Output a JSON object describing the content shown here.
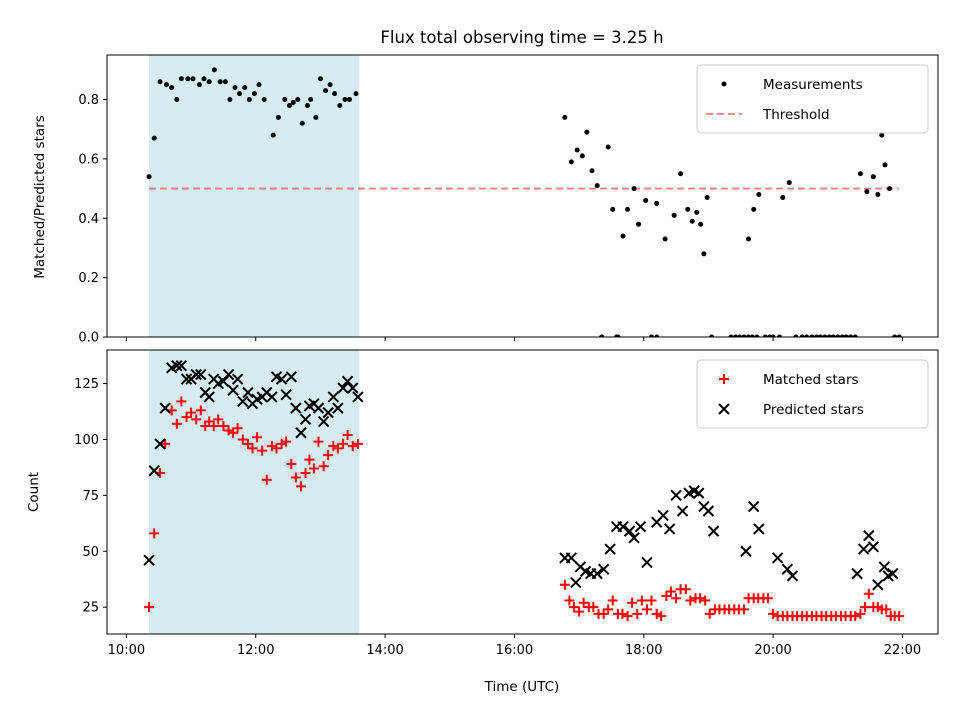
{
  "chart_data": [
    {
      "type": "scatter",
      "title": "Flux total observing time = 3.25 h",
      "xlabel": "",
      "ylabel": "Matched/Predicted stars",
      "xlim": [
        9.7,
        22.55
      ],
      "ylim": [
        0,
        0.95
      ],
      "yticks": [
        0,
        0.2,
        0.4,
        0.6,
        0.8
      ],
      "ytick_labels": [
        "0.0",
        "0.2",
        "0.4",
        "0.6",
        "0.8"
      ],
      "grid": false,
      "legend_position": "top-right",
      "shaded_span": {
        "x_start": 10.35,
        "x_end": 13.6,
        "color": "#add8e6"
      },
      "threshold": {
        "name": "Threshold",
        "value": 0.5,
        "x_start": 10.35,
        "x_end": 21.95,
        "color": "#ff7f7f"
      },
      "series": [
        {
          "name": "Measurements",
          "marker": "dot",
          "color": "#000000",
          "x": [
            10.35,
            10.43,
            10.52,
            10.62,
            10.7,
            10.78,
            10.85,
            10.95,
            11.03,
            11.13,
            11.2,
            11.28,
            11.36,
            11.45,
            11.53,
            11.6,
            11.68,
            11.75,
            11.83,
            11.9,
            11.98,
            12.05,
            12.13,
            12.27,
            12.35,
            12.45,
            12.52,
            12.58,
            12.65,
            12.72,
            12.8,
            12.85,
            12.93,
            13.0,
            13.08,
            13.15,
            13.22,
            13.3,
            13.38,
            13.45,
            13.55,
            16.78,
            16.88,
            16.97,
            17.05,
            17.12,
            17.2,
            17.28,
            17.35,
            17.45,
            17.52,
            17.58,
            17.68,
            17.75,
            17.85,
            17.92,
            18.03,
            18.2,
            18.33,
            18.47,
            18.57,
            18.68,
            18.75,
            18.82,
            18.88,
            18.93,
            18.98,
            19.05,
            19.62,
            19.7,
            19.78,
            20.15,
            20.25,
            20.35,
            21.35,
            21.45,
            21.55,
            21.62,
            21.68,
            21.73,
            21.8,
            17.35,
            17.6,
            18.12,
            18.2,
            19.35,
            19.42,
            19.48,
            19.55,
            19.62,
            19.68,
            19.75,
            19.88,
            19.95,
            20.0,
            20.1,
            20.45,
            20.52,
            20.6,
            20.67,
            20.73,
            20.8,
            20.87,
            20.93,
            21.0,
            21.07,
            21.13,
            21.2,
            21.27,
            21.88,
            21.95
          ],
          "y": [
            0.54,
            0.67,
            0.86,
            0.85,
            0.84,
            0.8,
            0.87,
            0.87,
            0.87,
            0.85,
            0.87,
            0.86,
            0.9,
            0.86,
            0.86,
            0.8,
            0.84,
            0.82,
            0.84,
            0.8,
            0.82,
            0.85,
            0.8,
            0.68,
            0.74,
            0.8,
            0.78,
            0.79,
            0.8,
            0.72,
            0.78,
            0.8,
            0.74,
            0.87,
            0.83,
            0.85,
            0.82,
            0.78,
            0.8,
            0.8,
            0.82,
            0.74,
            0.59,
            0.63,
            0.61,
            0.69,
            0.56,
            0.51,
            0.0,
            0.64,
            0.43,
            0.0,
            0.34,
            0.43,
            0.5,
            0.38,
            0.46,
            0.45,
            0.33,
            0.41,
            0.55,
            0.43,
            0.39,
            0.42,
            0.38,
            0.28,
            0.47,
            0.0,
            0.33,
            0.43,
            0.48,
            0.47,
            0.52,
            0.0,
            0.55,
            0.49,
            0.54,
            0.48,
            0.68,
            0.58,
            0.5,
            0.0,
            0.0,
            0.0,
            0.0,
            0.0,
            0.0,
            0.0,
            0.0,
            0.0,
            0.0,
            0.0,
            0.0,
            0.0,
            0.0,
            0.0,
            0.0,
            0.0,
            0.0,
            0.0,
            0.0,
            0.0,
            0.0,
            0.0,
            0.0,
            0.0,
            0.0,
            0.0,
            0.0,
            0.0,
            0.0
          ]
        }
      ],
      "legend": [
        "Measurements",
        "Threshold"
      ]
    },
    {
      "type": "scatter",
      "title": "",
      "xlabel": "Time (UTC)",
      "ylabel": "Count",
      "xlim": [
        9.7,
        22.55
      ],
      "ylim": [
        13,
        140
      ],
      "xticks": [
        10,
        12,
        14,
        16,
        18,
        20,
        22
      ],
      "xtick_labels": [
        "10:00",
        "12:00",
        "14:00",
        "16:00",
        "18:00",
        "20:00",
        "22:00"
      ],
      "yticks": [
        25,
        50,
        75,
        100,
        125
      ],
      "ytick_labels": [
        "25",
        "50",
        "75",
        "100",
        "125"
      ],
      "grid": false,
      "legend_position": "top-right",
      "shaded_span": {
        "x_start": 10.35,
        "x_end": 13.6,
        "color": "#add8e6"
      },
      "series": [
        {
          "name": "Matched stars",
          "marker": "plus",
          "color": "#ff0000",
          "x": [
            10.35,
            10.43,
            10.52,
            10.6,
            10.7,
            10.78,
            10.85,
            10.93,
            11.0,
            11.08,
            11.15,
            11.22,
            11.28,
            11.35,
            11.42,
            11.5,
            11.58,
            11.65,
            11.72,
            11.8,
            11.88,
            11.95,
            12.02,
            12.1,
            12.17,
            12.25,
            12.32,
            12.4,
            12.47,
            12.55,
            12.62,
            12.7,
            12.77,
            12.83,
            12.9,
            12.97,
            13.05,
            13.12,
            13.2,
            13.27,
            13.35,
            13.42,
            13.5,
            13.58,
            16.78,
            16.85,
            16.92,
            17.0,
            17.07,
            17.15,
            17.22,
            17.3,
            17.38,
            17.45,
            17.52,
            17.6,
            17.67,
            17.75,
            17.82,
            17.9,
            17.97,
            18.05,
            18.12,
            18.2,
            18.27,
            18.35,
            18.42,
            18.5,
            18.57,
            18.65,
            18.72,
            18.8,
            18.87,
            18.95,
            19.02,
            19.1,
            19.17,
            19.25,
            19.32,
            19.4,
            19.47,
            19.55,
            19.62,
            19.7,
            19.77,
            19.85,
            19.92,
            20.0,
            20.07,
            20.15,
            20.22,
            20.3,
            20.37,
            20.45,
            20.52,
            20.6,
            20.67,
            20.75,
            20.82,
            20.9,
            20.97,
            21.05,
            21.12,
            21.2,
            21.27,
            21.35,
            21.42,
            21.48,
            21.55,
            21.62,
            21.68,
            21.75,
            21.82,
            21.88,
            21.95
          ],
          "y": [
            25,
            58,
            85,
            98,
            113,
            107,
            117,
            110,
            112,
            109,
            113,
            106,
            108,
            106,
            109,
            106,
            104,
            103,
            105,
            100,
            98,
            96,
            101,
            95,
            82,
            97,
            96,
            98,
            99,
            89,
            83,
            79,
            85,
            91,
            87,
            99,
            88,
            93,
            97,
            96,
            98,
            102,
            97,
            98,
            35,
            28,
            25,
            23,
            27,
            25,
            25,
            22,
            22,
            24,
            28,
            22,
            22,
            21,
            27,
            22,
            28,
            24,
            28,
            22,
            21,
            30,
            32,
            29,
            33,
            33,
            28,
            29,
            29,
            28,
            22,
            24,
            24,
            24,
            24,
            24,
            24,
            24,
            29,
            29,
            29,
            29,
            29,
            22,
            21,
            21,
            21,
            21,
            21,
            21,
            21,
            21,
            21,
            21,
            21,
            21,
            21,
            21,
            21,
            21,
            21,
            22,
            25,
            31,
            25,
            25,
            24,
            24,
            21,
            21,
            21
          ]
        },
        {
          "name": "Predicted stars",
          "marker": "x",
          "color": "#000000",
          "x": [
            10.35,
            10.43,
            10.52,
            10.6,
            10.7,
            10.78,
            10.85,
            10.93,
            11.0,
            11.08,
            11.15,
            11.22,
            11.28,
            11.35,
            11.42,
            11.5,
            11.58,
            11.65,
            11.72,
            11.8,
            11.88,
            11.95,
            12.02,
            12.1,
            12.17,
            12.25,
            12.32,
            12.4,
            12.47,
            12.55,
            12.62,
            12.7,
            12.77,
            12.83,
            12.9,
            12.97,
            13.05,
            13.12,
            13.2,
            13.27,
            13.35,
            13.42,
            13.5,
            13.58,
            16.78,
            16.88,
            16.95,
            17.02,
            17.1,
            17.18,
            17.28,
            17.38,
            17.48,
            17.58,
            17.68,
            17.78,
            17.85,
            17.95,
            18.05,
            18.2,
            18.3,
            18.4,
            18.5,
            18.6,
            18.7,
            18.78,
            18.85,
            18.93,
            19.0,
            19.08,
            19.58,
            19.7,
            19.78,
            20.07,
            20.22,
            20.3,
            21.3,
            21.4,
            21.48,
            21.55,
            21.62,
            21.72,
            21.78,
            21.85
          ],
          "y": [
            46,
            86,
            98,
            114,
            132,
            133,
            133,
            127,
            127,
            129,
            129,
            121,
            119,
            127,
            125,
            126,
            129,
            122,
            127,
            117,
            121,
            116,
            118,
            119,
            121,
            119,
            128,
            127,
            120,
            128,
            114,
            103,
            109,
            115,
            116,
            114,
            108,
            112,
            119,
            114,
            123,
            126,
            123,
            119,
            47,
            47,
            36,
            43,
            41,
            40,
            40,
            42,
            51,
            61,
            61,
            59,
            56,
            61,
            45,
            63,
            66,
            60,
            75,
            68,
            76,
            77,
            76,
            70,
            68,
            59,
            50,
            70,
            60,
            47,
            42,
            39,
            40,
            51,
            57,
            52,
            35,
            43,
            39,
            40
          ]
        }
      ],
      "legend": [
        "Matched stars",
        "Predicted stars"
      ]
    }
  ]
}
